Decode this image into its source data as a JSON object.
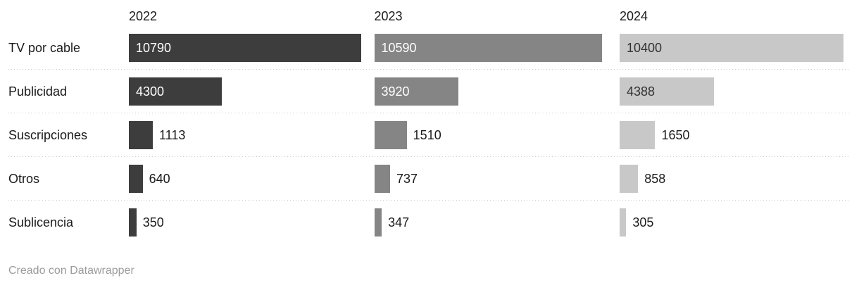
{
  "chart_data": {
    "type": "bar",
    "orientation": "horizontal",
    "title": "",
    "categories": [
      "TV por cable",
      "Publicidad",
      "Suscripciones",
      "Otros",
      "Sublicencia"
    ],
    "series": [
      {
        "name": "2022",
        "values": [
          10790,
          4300,
          1113,
          640,
          350
        ]
      },
      {
        "name": "2023",
        "values": [
          10590,
          3920,
          1510,
          737,
          347
        ]
      },
      {
        "name": "2024",
        "values": [
          10400,
          4388,
          1650,
          858,
          305
        ]
      }
    ],
    "max_value": 10790,
    "value_labels": "shown on every bar",
    "grid": "dotted horizontal separators between rows",
    "legend_position": "column headers above each bar group"
  },
  "colors": {
    "series": [
      "#3d3d3d",
      "#858585",
      "#c8c8c8"
    ],
    "value_inside_light": "#ffffff",
    "value_inside_dark": "#333333",
    "value_outside": "#1a1a1a",
    "row_label": "#1a1a1a",
    "column_header": "#1a1a1a",
    "separator": "#cccccc",
    "credit": "#9b9b9b",
    "background": "#ffffff"
  },
  "footer": {
    "credit": "Creado con Datawrapper"
  }
}
